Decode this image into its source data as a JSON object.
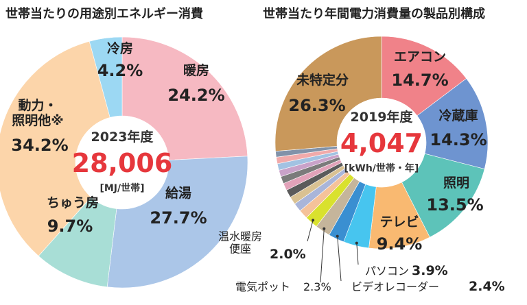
{
  "chart_data": [
    {
      "type": "pie",
      "title": "世帯当たりの用途別エネルギー消費",
      "year": "2023年度",
      "total": "28,006",
      "unit": "[MJ/世帯]",
      "categories": [
        "暖房",
        "給湯",
        "ちゅう房",
        "動力・\n照明他※",
        "冷房"
      ],
      "values": [
        24.2,
        27.7,
        9.7,
        34.2,
        4.2
      ],
      "value_labels": [
        "24.2%",
        "27.7%",
        "9.7%",
        "34.2%",
        "4.2%"
      ],
      "colors": [
        "#f6b9c2",
        "#abc6e8",
        "#a8ded6",
        "#fcd5aa",
        "#9cd8f3"
      ]
    },
    {
      "type": "pie",
      "title": "世帯当たり年間電力消費量の製品別構成",
      "year": "2019年度",
      "total": "4,047",
      "unit": "[kWh/世帯・年]",
      "categories": [
        "エアコン",
        "冷蔵庫",
        "照明",
        "テレビ",
        "パソコン",
        "ビデオレコーダー",
        "電気ポット",
        "温水暖房\n便座",
        null,
        null,
        null,
        null,
        null,
        null,
        null,
        null,
        null,
        null,
        "未特定分"
      ],
      "values": [
        14.7,
        14.3,
        13.5,
        9.4,
        3.9,
        2.4,
        2.3,
        2.0,
        1.4,
        1.3,
        1.2,
        1.2,
        1.1,
        1.1,
        1.0,
        1.0,
        1.0,
        0.9,
        26.3
      ],
      "value_labels": [
        "14.7%",
        "14.3%",
        "13.5%",
        "9.4%",
        "3.9%",
        "2.4%",
        "2.3%",
        "2.0%",
        null,
        null,
        null,
        null,
        null,
        null,
        null,
        null,
        null,
        null,
        "26.3%"
      ],
      "colors": [
        "#f08289",
        "#6e94d0",
        "#5dc3b9",
        "#f9b971",
        "#47c5ef",
        "#3a8fd1",
        "#c5b59b",
        "#d9e12e",
        "#f5c29a",
        "#a9b5d9",
        "#d9c192",
        "#5b5b5b",
        "#e2a2b9",
        "#7b7b7b",
        "#c9a2c9",
        "#a2c2e2",
        "#f1aaaa",
        "#8192a9",
        "#c9985b"
      ]
    }
  ]
}
